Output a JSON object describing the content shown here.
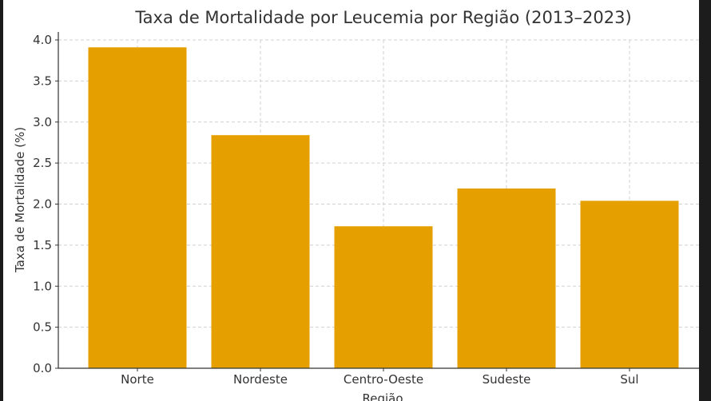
{
  "chart_data": {
    "type": "bar",
    "title": "Taxa de Mortalidade por Leucemia por Região (2013–2023)",
    "xlabel": "Região",
    "ylabel": "Taxa de Mortalidade (%)",
    "categories": [
      "Norte",
      "Nordeste",
      "Centro-Oeste",
      "Sudeste",
      "Sul"
    ],
    "values": [
      3.91,
      2.84,
      1.73,
      2.19,
      2.04
    ],
    "ylim": [
      0,
      4.0
    ],
    "yticks": [
      "0.0",
      "0.5",
      "1.0",
      "1.5",
      "2.0",
      "2.5",
      "3.0",
      "3.5",
      "4.0"
    ],
    "grid": true,
    "bar_color": "#E5A000"
  }
}
